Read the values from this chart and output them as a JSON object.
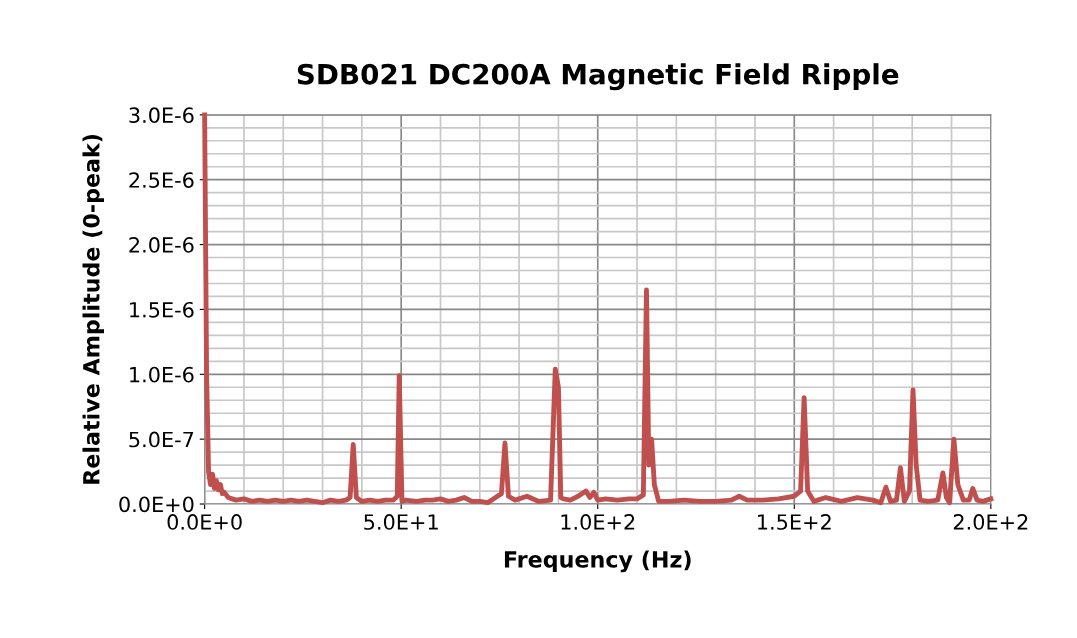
{
  "chart_data": {
    "type": "line",
    "title": "SDB021 DC200A Magnetic Field Ripple",
    "xlabel": "Frequency (Hz)",
    "ylabel": "Relative Amplitude (0-peak)",
    "x": [
      0,
      0.5,
      1,
      1.5,
      2,
      2.5,
      3,
      3.5,
      4,
      4.5,
      5,
      6,
      7,
      8,
      10,
      12,
      14,
      16,
      18,
      20,
      22,
      24,
      26,
      28,
      30,
      32,
      34,
      36,
      37,
      37.8,
      38.6,
      40,
      42,
      44,
      46,
      48,
      49,
      49.5,
      50.2,
      51,
      54,
      56,
      58,
      60,
      62,
      64,
      66,
      68,
      70,
      72,
      74,
      75.5,
      76.4,
      77.3,
      79,
      82,
      85,
      88,
      89.2,
      90,
      90.6,
      91.3,
      93,
      95,
      97,
      98,
      99,
      100,
      102,
      105,
      108,
      110,
      111.6,
      112.4,
      113,
      113.7,
      114.4,
      115.5,
      118,
      122,
      126,
      130,
      134,
      136,
      138,
      142,
      146,
      150,
      151.6,
      152.5,
      153.4,
      155,
      158,
      162,
      166,
      170,
      172,
      173.3,
      174.5,
      176,
      177,
      178,
      179.3,
      180.2,
      181,
      182,
      184,
      186.5,
      187.8,
      188.7,
      189.5,
      190.6,
      191.6,
      193,
      194.5,
      195.4,
      196.5,
      198,
      200
    ],
    "series": [
      {
        "color": "#c0504d",
        "values": [
          3e-06,
          1e-06,
          2.5e-07,
          1.5e-07,
          2.3e-07,
          1.2e-07,
          1.8e-07,
          1.1e-07,
          1.5e-07,
          8e-08,
          9e-08,
          5e-08,
          4e-08,
          3e-08,
          4e-08,
          2e-08,
          3e-08,
          2e-08,
          3e-08,
          2e-08,
          3e-08,
          2e-08,
          3e-08,
          2e-08,
          1e-08,
          3e-08,
          2e-08,
          3e-08,
          5e-08,
          4.6e-07,
          5e-08,
          2e-08,
          3e-08,
          2e-08,
          3e-08,
          3e-08,
          6e-08,
          9.9e-07,
          2e-08,
          3e-08,
          2e-08,
          3e-08,
          3e-08,
          4e-08,
          2e-08,
          3e-08,
          5e-08,
          2e-08,
          2e-08,
          1e-08,
          5e-08,
          8e-08,
          4.7e-07,
          6e-08,
          3e-08,
          6e-08,
          2e-08,
          3e-08,
          1.04e-06,
          9e-07,
          5e-08,
          4e-08,
          3e-08,
          6e-08,
          1e-07,
          5e-08,
          9e-08,
          3e-08,
          4e-08,
          3e-08,
          4e-08,
          4e-08,
          7e-08,
          1.65e-06,
          3e-07,
          5e-07,
          1.5e-07,
          2e-08,
          2e-08,
          3e-08,
          2e-08,
          2e-08,
          3e-08,
          6e-08,
          3e-08,
          3e-08,
          4e-08,
          6e-08,
          1e-07,
          8.2e-07,
          1e-07,
          2e-08,
          5e-08,
          2e-08,
          5e-08,
          3e-08,
          1e-08,
          1.3e-07,
          2e-08,
          3e-08,
          2.8e-07,
          2e-08,
          1e-07,
          8.8e-07,
          3e-07,
          3e-08,
          2e-08,
          3e-08,
          2.4e-07,
          5e-08,
          1e-08,
          5e-07,
          1.5e-07,
          3e-08,
          3e-08,
          1.2e-07,
          3e-08,
          2e-08,
          4e-08
        ]
      }
    ],
    "xlim": [
      0,
      200
    ],
    "ylim": [
      0,
      3e-06
    ],
    "xticks": [
      {
        "value": 0,
        "label": "0.0E+0"
      },
      {
        "value": 50,
        "label": "5.0E+1"
      },
      {
        "value": 100,
        "label": "1.0E+2"
      },
      {
        "value": 150,
        "label": "1.5E+2"
      },
      {
        "value": 200,
        "label": "2.0E+2"
      }
    ],
    "yticks": [
      {
        "value": 0,
        "label": "0.0E+0"
      },
      {
        "value": 5e-07,
        "label": "5.0E-7"
      },
      {
        "value": 1e-06,
        "label": "1.0E-6"
      },
      {
        "value": 1.5e-06,
        "label": "1.5E-6"
      },
      {
        "value": 2e-06,
        "label": "2.0E-6"
      },
      {
        "value": 2.5e-06,
        "label": "2.5E-6"
      },
      {
        "value": 3e-06,
        "label": "3.0E-6"
      }
    ],
    "grid": true,
    "legend": false,
    "marker": "none",
    "line_style": "solid"
  }
}
